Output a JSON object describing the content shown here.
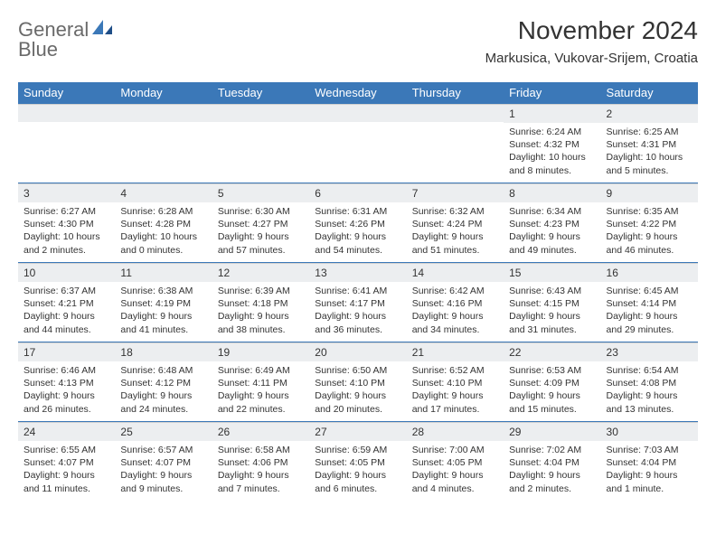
{
  "brand": {
    "name_gray": "General",
    "name_blue": "Blue"
  },
  "title": "November 2024",
  "location": "Markusica, Vukovar-Srijem, Croatia",
  "colors": {
    "header_bg": "#3b78b8",
    "header_text": "#ffffff",
    "daynum_bg": "#eceef0",
    "row_border": "#3b78b8",
    "body_text": "#333333",
    "logo_gray": "#6a6a6a",
    "logo_blue": "#3b78b8",
    "page_bg": "#ffffff"
  },
  "typography": {
    "title_fontsize": 28,
    "location_fontsize": 15,
    "dow_fontsize": 13,
    "daynum_fontsize": 12,
    "body_fontsize": 10.5
  },
  "days_of_week": [
    "Sunday",
    "Monday",
    "Tuesday",
    "Wednesday",
    "Thursday",
    "Friday",
    "Saturday"
  ],
  "weeks": [
    [
      {
        "n": "",
        "sunrise": "",
        "sunset": "",
        "daylight": ""
      },
      {
        "n": "",
        "sunrise": "",
        "sunset": "",
        "daylight": ""
      },
      {
        "n": "",
        "sunrise": "",
        "sunset": "",
        "daylight": ""
      },
      {
        "n": "",
        "sunrise": "",
        "sunset": "",
        "daylight": ""
      },
      {
        "n": "",
        "sunrise": "",
        "sunset": "",
        "daylight": ""
      },
      {
        "n": "1",
        "sunrise": "Sunrise: 6:24 AM",
        "sunset": "Sunset: 4:32 PM",
        "daylight": "Daylight: 10 hours and 8 minutes."
      },
      {
        "n": "2",
        "sunrise": "Sunrise: 6:25 AM",
        "sunset": "Sunset: 4:31 PM",
        "daylight": "Daylight: 10 hours and 5 minutes."
      }
    ],
    [
      {
        "n": "3",
        "sunrise": "Sunrise: 6:27 AM",
        "sunset": "Sunset: 4:30 PM",
        "daylight": "Daylight: 10 hours and 2 minutes."
      },
      {
        "n": "4",
        "sunrise": "Sunrise: 6:28 AM",
        "sunset": "Sunset: 4:28 PM",
        "daylight": "Daylight: 10 hours and 0 minutes."
      },
      {
        "n": "5",
        "sunrise": "Sunrise: 6:30 AM",
        "sunset": "Sunset: 4:27 PM",
        "daylight": "Daylight: 9 hours and 57 minutes."
      },
      {
        "n": "6",
        "sunrise": "Sunrise: 6:31 AM",
        "sunset": "Sunset: 4:26 PM",
        "daylight": "Daylight: 9 hours and 54 minutes."
      },
      {
        "n": "7",
        "sunrise": "Sunrise: 6:32 AM",
        "sunset": "Sunset: 4:24 PM",
        "daylight": "Daylight: 9 hours and 51 minutes."
      },
      {
        "n": "8",
        "sunrise": "Sunrise: 6:34 AM",
        "sunset": "Sunset: 4:23 PM",
        "daylight": "Daylight: 9 hours and 49 minutes."
      },
      {
        "n": "9",
        "sunrise": "Sunrise: 6:35 AM",
        "sunset": "Sunset: 4:22 PM",
        "daylight": "Daylight: 9 hours and 46 minutes."
      }
    ],
    [
      {
        "n": "10",
        "sunrise": "Sunrise: 6:37 AM",
        "sunset": "Sunset: 4:21 PM",
        "daylight": "Daylight: 9 hours and 44 minutes."
      },
      {
        "n": "11",
        "sunrise": "Sunrise: 6:38 AM",
        "sunset": "Sunset: 4:19 PM",
        "daylight": "Daylight: 9 hours and 41 minutes."
      },
      {
        "n": "12",
        "sunrise": "Sunrise: 6:39 AM",
        "sunset": "Sunset: 4:18 PM",
        "daylight": "Daylight: 9 hours and 38 minutes."
      },
      {
        "n": "13",
        "sunrise": "Sunrise: 6:41 AM",
        "sunset": "Sunset: 4:17 PM",
        "daylight": "Daylight: 9 hours and 36 minutes."
      },
      {
        "n": "14",
        "sunrise": "Sunrise: 6:42 AM",
        "sunset": "Sunset: 4:16 PM",
        "daylight": "Daylight: 9 hours and 34 minutes."
      },
      {
        "n": "15",
        "sunrise": "Sunrise: 6:43 AM",
        "sunset": "Sunset: 4:15 PM",
        "daylight": "Daylight: 9 hours and 31 minutes."
      },
      {
        "n": "16",
        "sunrise": "Sunrise: 6:45 AM",
        "sunset": "Sunset: 4:14 PM",
        "daylight": "Daylight: 9 hours and 29 minutes."
      }
    ],
    [
      {
        "n": "17",
        "sunrise": "Sunrise: 6:46 AM",
        "sunset": "Sunset: 4:13 PM",
        "daylight": "Daylight: 9 hours and 26 minutes."
      },
      {
        "n": "18",
        "sunrise": "Sunrise: 6:48 AM",
        "sunset": "Sunset: 4:12 PM",
        "daylight": "Daylight: 9 hours and 24 minutes."
      },
      {
        "n": "19",
        "sunrise": "Sunrise: 6:49 AM",
        "sunset": "Sunset: 4:11 PM",
        "daylight": "Daylight: 9 hours and 22 minutes."
      },
      {
        "n": "20",
        "sunrise": "Sunrise: 6:50 AM",
        "sunset": "Sunset: 4:10 PM",
        "daylight": "Daylight: 9 hours and 20 minutes."
      },
      {
        "n": "21",
        "sunrise": "Sunrise: 6:52 AM",
        "sunset": "Sunset: 4:10 PM",
        "daylight": "Daylight: 9 hours and 17 minutes."
      },
      {
        "n": "22",
        "sunrise": "Sunrise: 6:53 AM",
        "sunset": "Sunset: 4:09 PM",
        "daylight": "Daylight: 9 hours and 15 minutes."
      },
      {
        "n": "23",
        "sunrise": "Sunrise: 6:54 AM",
        "sunset": "Sunset: 4:08 PM",
        "daylight": "Daylight: 9 hours and 13 minutes."
      }
    ],
    [
      {
        "n": "24",
        "sunrise": "Sunrise: 6:55 AM",
        "sunset": "Sunset: 4:07 PM",
        "daylight": "Daylight: 9 hours and 11 minutes."
      },
      {
        "n": "25",
        "sunrise": "Sunrise: 6:57 AM",
        "sunset": "Sunset: 4:07 PM",
        "daylight": "Daylight: 9 hours and 9 minutes."
      },
      {
        "n": "26",
        "sunrise": "Sunrise: 6:58 AM",
        "sunset": "Sunset: 4:06 PM",
        "daylight": "Daylight: 9 hours and 7 minutes."
      },
      {
        "n": "27",
        "sunrise": "Sunrise: 6:59 AM",
        "sunset": "Sunset: 4:05 PM",
        "daylight": "Daylight: 9 hours and 6 minutes."
      },
      {
        "n": "28",
        "sunrise": "Sunrise: 7:00 AM",
        "sunset": "Sunset: 4:05 PM",
        "daylight": "Daylight: 9 hours and 4 minutes."
      },
      {
        "n": "29",
        "sunrise": "Sunrise: 7:02 AM",
        "sunset": "Sunset: 4:04 PM",
        "daylight": "Daylight: 9 hours and 2 minutes."
      },
      {
        "n": "30",
        "sunrise": "Sunrise: 7:03 AM",
        "sunset": "Sunset: 4:04 PM",
        "daylight": "Daylight: 9 hours and 1 minute."
      }
    ]
  ]
}
